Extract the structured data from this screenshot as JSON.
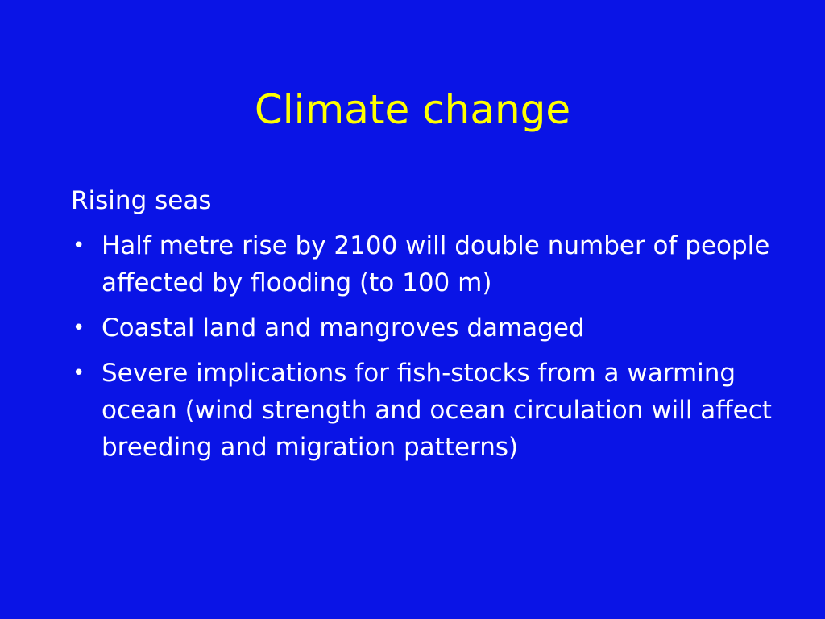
{
  "slide": {
    "title": "Climate change",
    "subheading": "Rising seas",
    "bullets": [
      "Half metre rise by 2100 will double number of people affected by flooding (to 100 m)",
      "Coastal land and mangroves damaged",
      "Severe implications for fish-stocks from a warming ocean (wind strength and ocean circulation will affect breeding and migration patterns)"
    ],
    "bullet_symbol": "•"
  },
  "colors": {
    "background": "#0a14e6",
    "title": "#ffff00",
    "text": "#ffffff"
  }
}
